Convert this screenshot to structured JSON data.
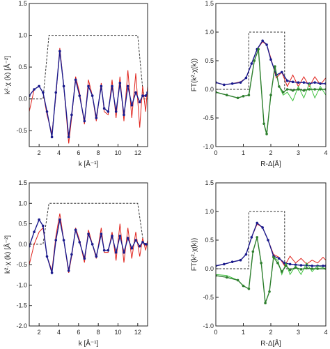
{
  "chart_data": [
    {
      "id": "k-top",
      "type": "line",
      "xlabel": "k [Å⁻¹]",
      "ylabel": "k²·χ (k) [Å⁻²]",
      "xlim": [
        1,
        13
      ],
      "ylim": [
        -0.75,
        1.5
      ],
      "xticks": [
        2,
        4,
        6,
        8,
        10,
        12
      ],
      "yticks": [
        -0.5,
        0.0,
        0.5,
        1.0,
        1.5
      ],
      "ytick_labels": [
        "-0.5",
        "0.0",
        "0.5",
        "1.0",
        "1.5"
      ],
      "series": [
        {
          "role": "window",
          "style": "dashed",
          "color": "#333333",
          "x": [
            1,
            2.4,
            3.0,
            12.0,
            12.6,
            13
          ],
          "y": [
            0,
            0,
            1.0,
            1.0,
            0,
            0
          ]
        },
        {
          "role": "experiment",
          "style": "line",
          "color": "#e0231c",
          "x": [
            1,
            1.5,
            2,
            2.4,
            2.8,
            3.3,
            3.7,
            4.1,
            4.5,
            5.0,
            5.3,
            5.7,
            6.1,
            6.6,
            7.0,
            7.4,
            7.8,
            8.3,
            8.6,
            9.0,
            9.4,
            9.8,
            10.2,
            10.6,
            11.0,
            11.4,
            11.8,
            12.2,
            12.5,
            12.8,
            13
          ],
          "y": [
            -0.2,
            0.15,
            0.2,
            0.1,
            -0.25,
            -0.55,
            0.05,
            0.8,
            0.2,
            -0.7,
            -0.3,
            0.35,
            0.1,
            -0.4,
            0.3,
            0.05,
            -0.35,
            0.25,
            -0.2,
            -0.25,
            0.3,
            -0.3,
            0.35,
            -0.35,
            0.45,
            -0.3,
            0.4,
            -0.45,
            0.2,
            -0.2,
            0.2
          ]
        },
        {
          "role": "fit",
          "style": "dotted",
          "color": "#1a1a8c",
          "x": [
            1,
            1.5,
            2,
            2.4,
            2.8,
            3.3,
            3.7,
            4.1,
            4.5,
            5.0,
            5.3,
            5.7,
            6.1,
            6.6,
            7.0,
            7.4,
            7.8,
            8.3,
            8.6,
            9.0,
            9.4,
            9.8,
            10.2,
            10.6,
            11.0,
            11.4,
            11.8,
            12.2,
            12.5,
            12.8,
            13
          ],
          "y": [
            0.05,
            0.15,
            0.2,
            0.1,
            -0.2,
            -0.6,
            0.1,
            0.75,
            0.2,
            -0.6,
            -0.25,
            0.3,
            0.05,
            -0.35,
            0.2,
            0.05,
            -0.3,
            0.2,
            -0.15,
            -0.2,
            0.2,
            -0.2,
            0.25,
            -0.25,
            0.2,
            -0.1,
            0.1,
            -0.05,
            0.05,
            0.05,
            0.1
          ]
        }
      ]
    },
    {
      "id": "r-top",
      "type": "line",
      "xlabel": "R-Δ[Å]",
      "ylabel": "FT(k²·χ(k))",
      "xlim": [
        0,
        4
      ],
      "ylim": [
        -1.0,
        1.5
      ],
      "xticks": [
        0,
        1,
        2,
        3,
        4
      ],
      "yticks": [
        -1.0,
        -0.5,
        0.0,
        0.5,
        1.0,
        1.5
      ],
      "ytick_labels": [
        "-1.0",
        "-0.5",
        "0.0",
        "0.5",
        "1.0",
        "1.5"
      ],
      "series": [
        {
          "role": "window",
          "style": "dashed",
          "color": "#333333",
          "x": [
            0,
            1.2,
            1.2,
            2.5,
            2.5,
            4
          ],
          "y": [
            0,
            0,
            1.0,
            1.0,
            0,
            0
          ]
        },
        {
          "role": "magnitude-experiment",
          "style": "line",
          "color": "#e0231c",
          "x": [
            0,
            0.3,
            0.6,
            0.9,
            1.1,
            1.3,
            1.5,
            1.7,
            1.85,
            2.0,
            2.2,
            2.4,
            2.6,
            2.8,
            3.0,
            3.2,
            3.4,
            3.6,
            3.8,
            4.0
          ],
          "y": [
            0.12,
            0.08,
            0.1,
            0.13,
            0.2,
            0.45,
            0.7,
            0.83,
            0.78,
            0.55,
            0.2,
            0.3,
            0.05,
            0.25,
            0.05,
            0.22,
            0.05,
            0.22,
            0.08,
            0.2
          ]
        },
        {
          "role": "magnitude-fit",
          "style": "dotted",
          "color": "#1a1a8c",
          "x": [
            0,
            0.3,
            0.6,
            0.9,
            1.1,
            1.3,
            1.5,
            1.7,
            1.85,
            2.0,
            2.2,
            2.4,
            2.6,
            2.8,
            3.0,
            3.2,
            3.4,
            3.6,
            3.8,
            4.0
          ],
          "y": [
            0.12,
            0.08,
            0.1,
            0.12,
            0.2,
            0.45,
            0.7,
            0.85,
            0.78,
            0.52,
            0.25,
            0.3,
            0.15,
            0.13,
            0.12,
            0.12,
            0.1,
            0.12,
            0.1,
            0.1
          ]
        },
        {
          "role": "imaginary-experiment",
          "style": "line",
          "color": "#3ec23e",
          "x": [
            0,
            0.4,
            0.8,
            1.0,
            1.2,
            1.4,
            1.55,
            1.75,
            1.85,
            2.0,
            2.15,
            2.3,
            2.45,
            2.6,
            2.8,
            3.0,
            3.2,
            3.4,
            3.6,
            3.8,
            4.0
          ],
          "y": [
            -0.05,
            -0.1,
            -0.15,
            -0.12,
            -0.1,
            0.5,
            0.7,
            -0.6,
            -0.8,
            -0.1,
            0.4,
            0.05,
            -0.1,
            -0.05,
            -0.2,
            0.05,
            -0.15,
            0.1,
            -0.15,
            0.05,
            -0.1
          ]
        },
        {
          "role": "imaginary-fit",
          "style": "dotted",
          "color": "#2f7f2f",
          "x": [
            0,
            0.4,
            0.8,
            1.0,
            1.2,
            1.4,
            1.55,
            1.75,
            1.85,
            2.0,
            2.15,
            2.3,
            2.45,
            2.6,
            2.8,
            3.0,
            3.2,
            3.4,
            3.6,
            3.8,
            4.0
          ],
          "y": [
            -0.05,
            -0.1,
            -0.15,
            -0.12,
            -0.1,
            0.5,
            0.7,
            -0.6,
            -0.78,
            -0.1,
            0.4,
            0.05,
            -0.05,
            0.0,
            -0.02,
            0.0,
            -0.02,
            0.0,
            0.0,
            0.0,
            0.0
          ]
        }
      ]
    },
    {
      "id": "k-bottom",
      "type": "line",
      "xlabel": "k [Å⁻¹]",
      "ylabel": "k²·χ (k) [Å⁻²]",
      "xlim": [
        1,
        13
      ],
      "ylim": [
        -2.0,
        1.5
      ],
      "xticks": [
        2,
        4,
        6,
        8,
        10,
        12
      ],
      "yticks": [
        -2.0,
        -1.5,
        -1.0,
        -0.5,
        0.0,
        0.5,
        1.0,
        1.5
      ],
      "ytick_labels": [
        "-2.0",
        "-1.5",
        "-1.0",
        "-0.5",
        "0.0",
        "0.5",
        "1.0",
        "1.5"
      ],
      "series": [
        {
          "role": "window",
          "style": "dashed",
          "color": "#333333",
          "x": [
            1,
            2.4,
            3.0,
            12.0,
            12.6,
            13
          ],
          "y": [
            0,
            0,
            1.0,
            1.0,
            0,
            0
          ]
        },
        {
          "role": "experiment",
          "style": "line",
          "color": "#e0231c",
          "x": [
            1,
            1.5,
            2,
            2.4,
            2.8,
            3.3,
            3.7,
            4.1,
            4.5,
            5.0,
            5.3,
            5.7,
            6.1,
            6.6,
            7.0,
            7.4,
            7.8,
            8.3,
            8.6,
            9.0,
            9.4,
            9.8,
            10.2,
            10.6,
            11.0,
            11.4,
            11.8,
            12.2,
            12.5,
            12.8,
            13
          ],
          "y": [
            -0.5,
            0.0,
            0.3,
            0.4,
            -0.3,
            -0.65,
            0.2,
            0.75,
            0.1,
            -0.7,
            -0.3,
            0.4,
            0.1,
            -0.45,
            0.35,
            0.0,
            -0.35,
            0.4,
            -0.2,
            -0.2,
            0.3,
            -0.4,
            0.5,
            -0.45,
            0.4,
            -0.35,
            0.3,
            -0.3,
            0.15,
            -0.15,
            0.1
          ]
        },
        {
          "role": "fit",
          "style": "dotted",
          "color": "#1a1a8c",
          "x": [
            1,
            1.5,
            2,
            2.4,
            2.8,
            3.3,
            3.7,
            4.1,
            4.5,
            5.0,
            5.3,
            5.7,
            6.1,
            6.6,
            7.0,
            7.4,
            7.8,
            8.3,
            8.6,
            9.0,
            9.4,
            9.8,
            10.2,
            10.6,
            11.0,
            11.4,
            11.8,
            12.2,
            12.5,
            12.8,
            13
          ],
          "y": [
            -0.05,
            0.3,
            0.6,
            0.45,
            -0.3,
            -0.7,
            0.1,
            0.6,
            0.1,
            -0.65,
            -0.25,
            0.35,
            0.05,
            -0.35,
            0.25,
            0.0,
            -0.3,
            0.25,
            -0.15,
            -0.15,
            0.2,
            -0.2,
            0.2,
            -0.2,
            0.15,
            -0.1,
            0.1,
            -0.05,
            0.05,
            0.0,
            0.0
          ]
        }
      ]
    },
    {
      "id": "r-bottom",
      "type": "line",
      "xlabel": "R-Δ[Å]",
      "ylabel": "FT(k²·χ(k))",
      "xlim": [
        0,
        4
      ],
      "ylim": [
        -1.0,
        1.5
      ],
      "xticks": [
        0,
        1,
        2,
        3,
        4
      ],
      "yticks": [
        -1.0,
        -0.5,
        0.0,
        0.5,
        1.0,
        1.5
      ],
      "ytick_labels": [
        "-1.0",
        "-0.5",
        "0.0",
        "0.5",
        "1.0",
        "1.5"
      ],
      "series": [
        {
          "role": "window",
          "style": "dashed",
          "color": "#333333",
          "x": [
            0,
            1.2,
            1.2,
            2.5,
            2.5,
            4
          ],
          "y": [
            0,
            0,
            1.0,
            1.0,
            0,
            0
          ]
        },
        {
          "role": "magnitude-experiment",
          "style": "line",
          "color": "#e0231c",
          "x": [
            0,
            0.3,
            0.6,
            0.9,
            1.1,
            1.3,
            1.5,
            1.7,
            1.9,
            2.1,
            2.3,
            2.5,
            2.7,
            2.9,
            3.1,
            3.3,
            3.5,
            3.7,
            3.9,
            4.0
          ],
          "y": [
            0.05,
            0.08,
            0.12,
            0.15,
            0.25,
            0.55,
            0.78,
            0.72,
            0.5,
            0.25,
            0.2,
            0.05,
            0.22,
            0.1,
            0.18,
            0.08,
            0.15,
            0.1,
            0.2,
            0.15
          ]
        },
        {
          "role": "magnitude-fit",
          "style": "dotted",
          "color": "#1a1a8c",
          "x": [
            0,
            0.3,
            0.6,
            0.9,
            1.1,
            1.3,
            1.5,
            1.7,
            1.9,
            2.1,
            2.3,
            2.5,
            2.7,
            2.9,
            3.1,
            3.3,
            3.5,
            3.7,
            3.9,
            4.0
          ],
          "y": [
            0.05,
            0.08,
            0.12,
            0.15,
            0.25,
            0.55,
            0.8,
            0.72,
            0.5,
            0.22,
            0.18,
            0.1,
            0.08,
            0.07,
            0.06,
            0.06,
            0.05,
            0.05,
            0.05,
            0.05
          ]
        },
        {
          "role": "imaginary-experiment",
          "style": "line",
          "color": "#3ec23e",
          "x": [
            0,
            0.4,
            0.8,
            1.0,
            1.2,
            1.35,
            1.5,
            1.65,
            1.8,
            1.95,
            2.1,
            2.25,
            2.4,
            2.55,
            2.7,
            2.9,
            3.1,
            3.3,
            3.5,
            3.7,
            4.0
          ],
          "y": [
            -0.1,
            -0.12,
            -0.2,
            -0.3,
            -0.35,
            0.3,
            0.55,
            0.1,
            -0.6,
            -0.4,
            0.2,
            0.15,
            -0.1,
            0.1,
            -0.1,
            0.05,
            -0.1,
            0.1,
            -0.05,
            0.05,
            0.0
          ]
        },
        {
          "role": "imaginary-fit",
          "style": "dotted",
          "color": "#2f7f2f",
          "x": [
            0,
            0.4,
            0.8,
            1.0,
            1.2,
            1.35,
            1.5,
            1.65,
            1.8,
            1.95,
            2.1,
            2.25,
            2.4,
            2.55,
            2.7,
            2.9,
            3.1,
            3.3,
            3.5,
            3.7,
            4.0
          ],
          "y": [
            -0.12,
            -0.15,
            -0.2,
            -0.3,
            -0.35,
            0.3,
            0.55,
            0.1,
            -0.6,
            -0.4,
            0.2,
            0.1,
            -0.05,
            0.05,
            -0.02,
            0.02,
            -0.01,
            0.01,
            0.0,
            0.0,
            0.0
          ]
        }
      ]
    }
  ]
}
